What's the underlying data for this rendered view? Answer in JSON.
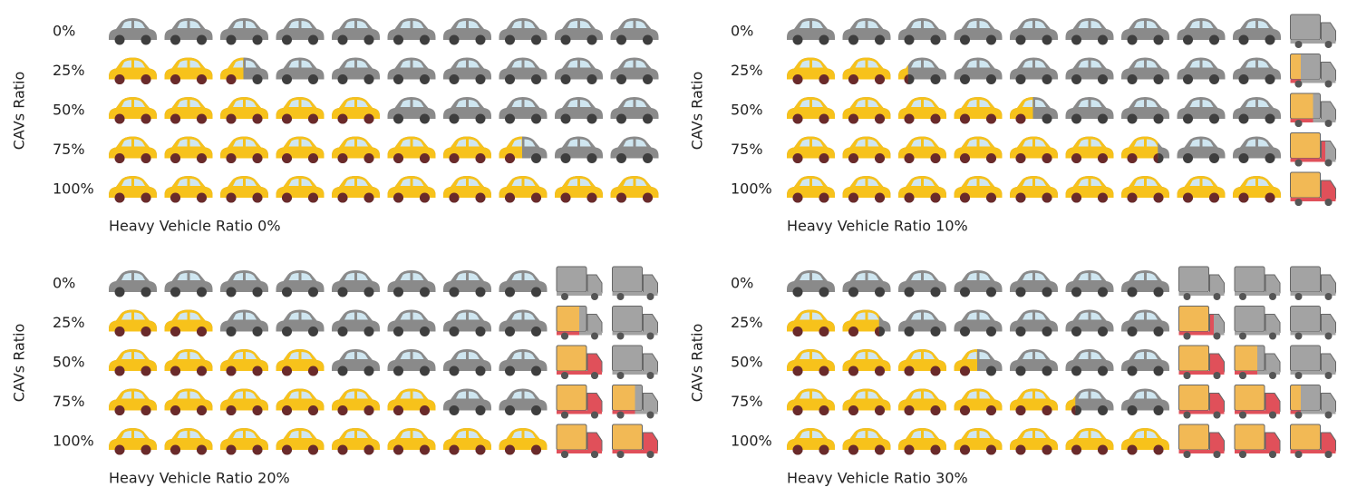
{
  "chart_data": [
    {
      "type": "pictograph",
      "y_label": "CAVs Ratio",
      "caption": "Heavy Vehicle Ratio 0%",
      "heavy_vehicle_ratio": 0,
      "icons_per_row": 10,
      "yticks": [
        {
          "value": 0,
          "label": "0%"
        },
        {
          "value": 25,
          "label": "25%"
        },
        {
          "value": 50,
          "label": "50%"
        },
        {
          "value": 75,
          "label": "75%"
        },
        {
          "value": 100,
          "label": "100%"
        }
      ],
      "colors": {
        "car_base": "#8a8a8a",
        "car_cav": "#f7c21b",
        "truck_base": "#a3a3a3",
        "truck_cav": "#f2b955"
      }
    },
    {
      "type": "pictograph",
      "y_label": "CAVs Ratio",
      "caption": "Heavy Vehicle Ratio 10%",
      "heavy_vehicle_ratio": 10,
      "icons_per_row": 10,
      "yticks": [
        {
          "value": 0,
          "label": "0%"
        },
        {
          "value": 25,
          "label": "25%"
        },
        {
          "value": 50,
          "label": "50%"
        },
        {
          "value": 75,
          "label": "75%"
        },
        {
          "value": 100,
          "label": "100%"
        }
      ],
      "colors": {
        "car_base": "#8a8a8a",
        "car_cav": "#f7c21b",
        "truck_base": "#a3a3a3",
        "truck_cav": "#f2b955"
      }
    },
    {
      "type": "pictograph",
      "y_label": "CAVs Ratio",
      "caption": "Heavy Vehicle Ratio 20%",
      "heavy_vehicle_ratio": 20,
      "icons_per_row": 10,
      "yticks": [
        {
          "value": 0,
          "label": "0%"
        },
        {
          "value": 25,
          "label": "25%"
        },
        {
          "value": 50,
          "label": "50%"
        },
        {
          "value": 75,
          "label": "75%"
        },
        {
          "value": 100,
          "label": "100%"
        }
      ],
      "colors": {
        "car_base": "#8a8a8a",
        "car_cav": "#f7c21b",
        "truck_base": "#a3a3a3",
        "truck_cav": "#f2b955"
      }
    },
    {
      "type": "pictograph",
      "y_label": "CAVs Ratio",
      "caption": "Heavy Vehicle Ratio 30%",
      "heavy_vehicle_ratio": 30,
      "icons_per_row": 10,
      "yticks": [
        {
          "value": 0,
          "label": "0%"
        },
        {
          "value": 25,
          "label": "25%"
        },
        {
          "value": 50,
          "label": "50%"
        },
        {
          "value": 75,
          "label": "75%"
        },
        {
          "value": 100,
          "label": "100%"
        }
      ],
      "colors": {
        "car_base": "#8a8a8a",
        "car_cav": "#f7c21b",
        "truck_base": "#a3a3a3",
        "truck_cav": "#f2b955"
      }
    }
  ]
}
